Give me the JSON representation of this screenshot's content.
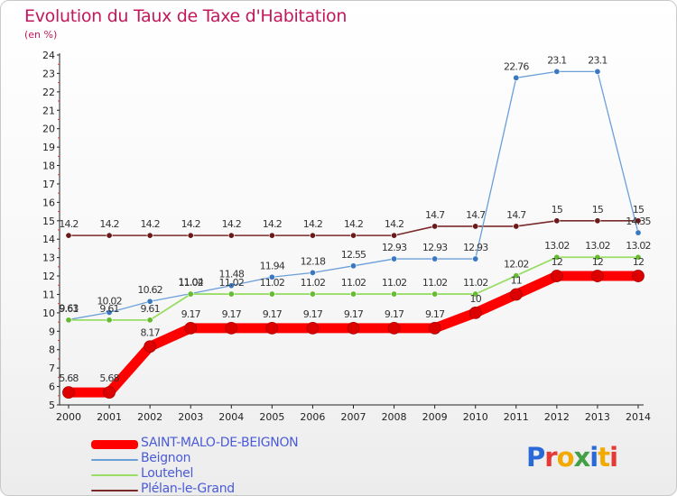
{
  "header": {
    "title": "Evolution du Taux de Taxe d'Habitation",
    "subtitle": "(en %)"
  },
  "brand": {
    "text": "Proxiti",
    "colors": [
      "#2a6ad8",
      "#e53935",
      "#f2a900",
      "#43a047",
      "#2a6ad8",
      "#f2a900",
      "#e53935"
    ]
  },
  "chart_data": {
    "type": "line",
    "title": "Evolution du Taux de Taxe d'Habitation",
    "ylabel": "(en %)",
    "xlabel": "",
    "x": [
      "2000",
      "2001",
      "2002",
      "2003",
      "2004",
      "2005",
      "2006",
      "2007",
      "2008",
      "2009",
      "2010",
      "2011",
      "2012",
      "2013",
      "2014"
    ],
    "ylim": [
      5,
      24
    ],
    "yticks": [
      5,
      6,
      7,
      8,
      9,
      10,
      11,
      12,
      13,
      14,
      15,
      16,
      17,
      18,
      19,
      20,
      21,
      22,
      23,
      24
    ],
    "grid": false,
    "legend_position": "bottom-left",
    "series": [
      {
        "name": "SAINT-MALO-DE-BEIGNON",
        "color": "#ff0000",
        "values": [
          5.68,
          5.68,
          8.17,
          9.17,
          9.17,
          9.17,
          9.17,
          9.17,
          9.17,
          9.17,
          10,
          11,
          12,
          12,
          12
        ],
        "labels": [
          "5.68",
          "5.68",
          "8.17",
          "9.17",
          "9.17",
          "9.17",
          "9.17",
          "9.17",
          "9.17",
          "9.17",
          "10",
          "11",
          "12",
          "12",
          "12"
        ]
      },
      {
        "name": "Beignon",
        "color": "#6a9fd8",
        "values": [
          9.63,
          10.02,
          10.62,
          11.04,
          11.48,
          11.94,
          12.18,
          12.55,
          12.93,
          12.93,
          12.93,
          22.76,
          23.1,
          23.1,
          14.35
        ],
        "labels": [
          "9.63",
          "10.02",
          "10.62",
          "11.04",
          "11.48",
          "11.94",
          "12.18",
          "12.55",
          "12.93",
          "12.93",
          "12.93",
          "22.76",
          "23.1",
          "23.1",
          "14.35"
        ]
      },
      {
        "name": "Loutehel",
        "color": "#99dd66",
        "values": [
          9.61,
          9.61,
          9.61,
          11.02,
          11.02,
          11.02,
          11.02,
          11.02,
          11.02,
          11.02,
          11.02,
          12.02,
          13.02,
          13.02,
          13.02
        ],
        "labels": [
          "9.61",
          "9.61",
          "9.61",
          "11.02",
          "11.02",
          "11.02",
          "11.02",
          "11.02",
          "11.02",
          "11.02",
          "11.02",
          "12.02",
          "13.02",
          "13.02",
          "13.02"
        ]
      },
      {
        "name": "Plélan-le-Grand",
        "color": "#7a2a2a",
        "values": [
          14.2,
          14.2,
          14.2,
          14.2,
          14.2,
          14.2,
          14.2,
          14.2,
          14.2,
          14.7,
          14.7,
          14.7,
          15,
          15,
          15
        ],
        "labels": [
          "14.2",
          "14.2",
          "14.2",
          "14.2",
          "14.2",
          "14.2",
          "14.2",
          "14.2",
          "14.2",
          "14.7",
          "14.7",
          "14.7",
          "15",
          "15",
          "15"
        ]
      }
    ]
  }
}
